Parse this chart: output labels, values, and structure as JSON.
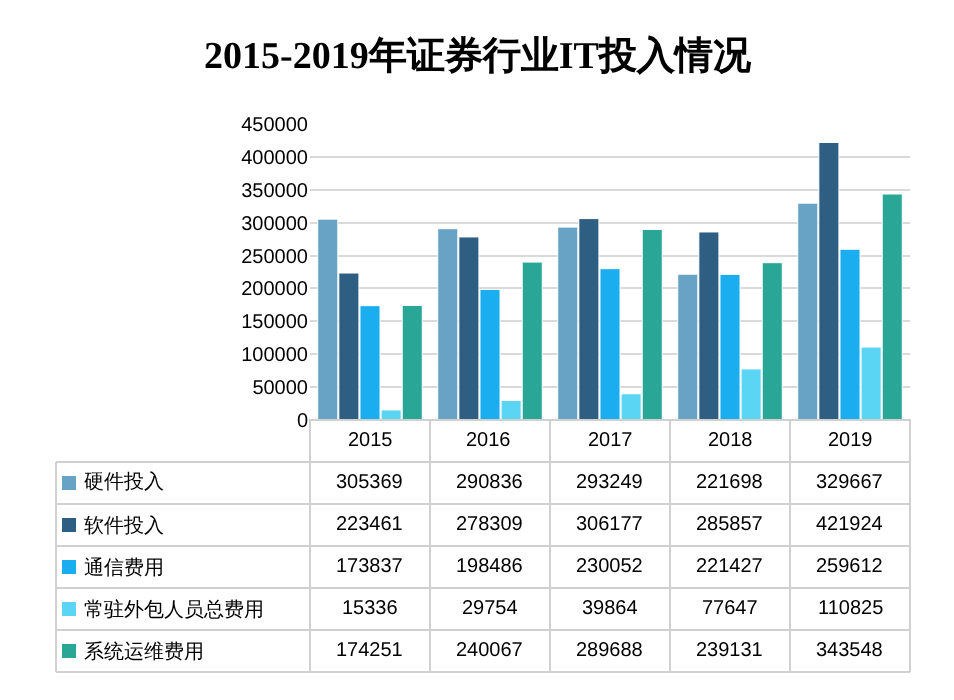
{
  "chart_data": {
    "type": "bar",
    "title": "2015-2019年证券行业IT投入情况",
    "categories": [
      "2015",
      "2016",
      "2017",
      "2018",
      "2019"
    ],
    "series": [
      {
        "name": "硬件投入",
        "color": "#68a3c6",
        "values": [
          305369,
          290836,
          293249,
          221698,
          329667
        ]
      },
      {
        "name": "软件投入",
        "color": "#2e5f82",
        "values": [
          223461,
          278309,
          306177,
          285857,
          421924
        ]
      },
      {
        "name": "通信费用",
        "color": "#1aaef0",
        "values": [
          173837,
          198486,
          230052,
          221427,
          259612
        ]
      },
      {
        "name": "常驻外包人员总费用",
        "color": "#5ad6f4",
        "values": [
          15336,
          29754,
          39864,
          77647,
          110825
        ]
      },
      {
        "name": "系统运维费用",
        "color": "#2aa697",
        "values": [
          174251,
          240067,
          289688,
          239131,
          343548
        ]
      }
    ],
    "ylim": [
      0,
      450000
    ],
    "yticks": [
      0,
      50000,
      100000,
      150000,
      200000,
      250000,
      300000,
      350000,
      400000,
      450000
    ],
    "grid": "y",
    "legend": "bottom",
    "data_labels": true
  }
}
